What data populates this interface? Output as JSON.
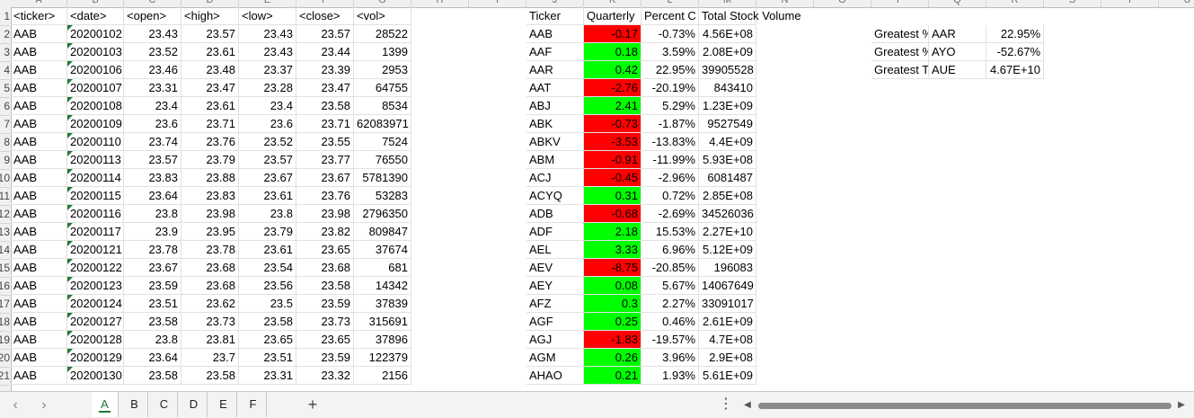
{
  "column_letters": [
    "A",
    "B",
    "C",
    "D",
    "E",
    "F",
    "G",
    "H",
    "I",
    "J",
    "K",
    "L",
    "M",
    "N",
    "O",
    "P",
    "Q",
    "R",
    "S",
    "T",
    "U"
  ],
  "row_numbers": [
    "1",
    "2",
    "3",
    "4",
    "5",
    "6",
    "7",
    "8",
    "9",
    "10",
    "11",
    "12",
    "13",
    "14",
    "15",
    "16",
    "17",
    "18",
    "19",
    "20",
    "21"
  ],
  "stock_headers": [
    "<ticker>",
    "<date>",
    "<open>",
    "<high>",
    "<low>",
    "<close>",
    "<vol>"
  ],
  "stock_rows": [
    [
      "AAB",
      "20200102",
      "23.43",
      "23.57",
      "23.43",
      "23.57",
      "28522"
    ],
    [
      "AAB",
      "20200103",
      "23.52",
      "23.61",
      "23.43",
      "23.44",
      "1399"
    ],
    [
      "AAB",
      "20200106",
      "23.46",
      "23.48",
      "23.37",
      "23.39",
      "2953"
    ],
    [
      "AAB",
      "20200107",
      "23.31",
      "23.47",
      "23.28",
      "23.47",
      "64755"
    ],
    [
      "AAB",
      "20200108",
      "23.4",
      "23.61",
      "23.4",
      "23.58",
      "8534"
    ],
    [
      "AAB",
      "20200109",
      "23.6",
      "23.71",
      "23.6",
      "23.71",
      "62083971"
    ],
    [
      "AAB",
      "20200110",
      "23.74",
      "23.76",
      "23.52",
      "23.55",
      "7524"
    ],
    [
      "AAB",
      "20200113",
      "23.57",
      "23.79",
      "23.57",
      "23.77",
      "76550"
    ],
    [
      "AAB",
      "20200114",
      "23.83",
      "23.88",
      "23.67",
      "23.67",
      "5781390"
    ],
    [
      "AAB",
      "20200115",
      "23.64",
      "23.83",
      "23.61",
      "23.76",
      "53283"
    ],
    [
      "AAB",
      "20200116",
      "23.8",
      "23.98",
      "23.8",
      "23.98",
      "2796350"
    ],
    [
      "AAB",
      "20200117",
      "23.9",
      "23.95",
      "23.79",
      "23.82",
      "809847"
    ],
    [
      "AAB",
      "20200121",
      "23.78",
      "23.78",
      "23.61",
      "23.65",
      "37674"
    ],
    [
      "AAB",
      "20200122",
      "23.67",
      "23.68",
      "23.54",
      "23.68",
      "681"
    ],
    [
      "AAB",
      "20200123",
      "23.59",
      "23.68",
      "23.56",
      "23.58",
      "14342"
    ],
    [
      "AAB",
      "20200124",
      "23.51",
      "23.62",
      "23.5",
      "23.59",
      "37839"
    ],
    [
      "AAB",
      "20200127",
      "23.58",
      "23.73",
      "23.58",
      "23.73",
      "315691"
    ],
    [
      "AAB",
      "20200128",
      "23.8",
      "23.81",
      "23.65",
      "23.65",
      "37896"
    ],
    [
      "AAB",
      "20200129",
      "23.64",
      "23.7",
      "23.51",
      "23.59",
      "122379"
    ],
    [
      "AAB",
      "20200130",
      "23.58",
      "23.58",
      "23.31",
      "23.32",
      "2156"
    ]
  ],
  "summary_headers": [
    "Ticker",
    "Quarterly",
    "Percent C",
    "Total Stock Volume"
  ],
  "summary_rows": [
    [
      "AAB",
      "-0.17",
      "-0.73%",
      "4.56E+08"
    ],
    [
      "AAF",
      "0.18",
      "3.59%",
      "2.08E+09"
    ],
    [
      "AAR",
      "0.42",
      "22.95%",
      "39905528"
    ],
    [
      "AAT",
      "-2.76",
      "-20.19%",
      "843410"
    ],
    [
      "ABJ",
      "2.41",
      "5.29%",
      "1.23E+09"
    ],
    [
      "ABK",
      "-0.73",
      "-1.87%",
      "9527549"
    ],
    [
      "ABKV",
      "-3.53",
      "-13.83%",
      "4.4E+09"
    ],
    [
      "ABM",
      "-0.91",
      "-11.99%",
      "5.93E+08"
    ],
    [
      "ACJ",
      "-0.45",
      "-2.96%",
      "6081487"
    ],
    [
      "ACYQ",
      "0.31",
      "0.72%",
      "2.85E+08"
    ],
    [
      "ADB",
      "-0.68",
      "-2.69%",
      "34526036"
    ],
    [
      "ADF",
      "2.18",
      "15.53%",
      "2.27E+10"
    ],
    [
      "AEL",
      "3.33",
      "6.96%",
      "5.12E+09"
    ],
    [
      "AEV",
      "-8.75",
      "-20.85%",
      "196083"
    ],
    [
      "AEY",
      "0.08",
      "5.67%",
      "14067649"
    ],
    [
      "AFZ",
      "0.3",
      "2.27%",
      "33091017"
    ],
    [
      "AGF",
      "0.25",
      "0.46%",
      "2.61E+09"
    ],
    [
      "AGJ",
      "-1.83",
      "-19.57%",
      "4.7E+08"
    ],
    [
      "AGM",
      "0.26",
      "3.96%",
      "2.9E+08"
    ],
    [
      "AHAO",
      "0.21",
      "1.93%",
      "5.61E+09"
    ]
  ],
  "greatest": [
    [
      "Greatest %",
      "AAR",
      "22.95%"
    ],
    [
      "Greatest %",
      "AYO",
      "-52.67%"
    ],
    [
      "Greatest T",
      "AUE",
      "4.67E+10"
    ]
  ],
  "sheet_tabs": [
    "A",
    "B",
    "C",
    "D",
    "E",
    "F"
  ],
  "active_tab": "A",
  "add_sheet_label": "+",
  "more_label": "⋮",
  "nav_prev_label": "‹",
  "nav_next_label": "›",
  "colors": {
    "positive": "#00ff00",
    "negative": "#ff0000",
    "accent": "#1e7b34"
  }
}
